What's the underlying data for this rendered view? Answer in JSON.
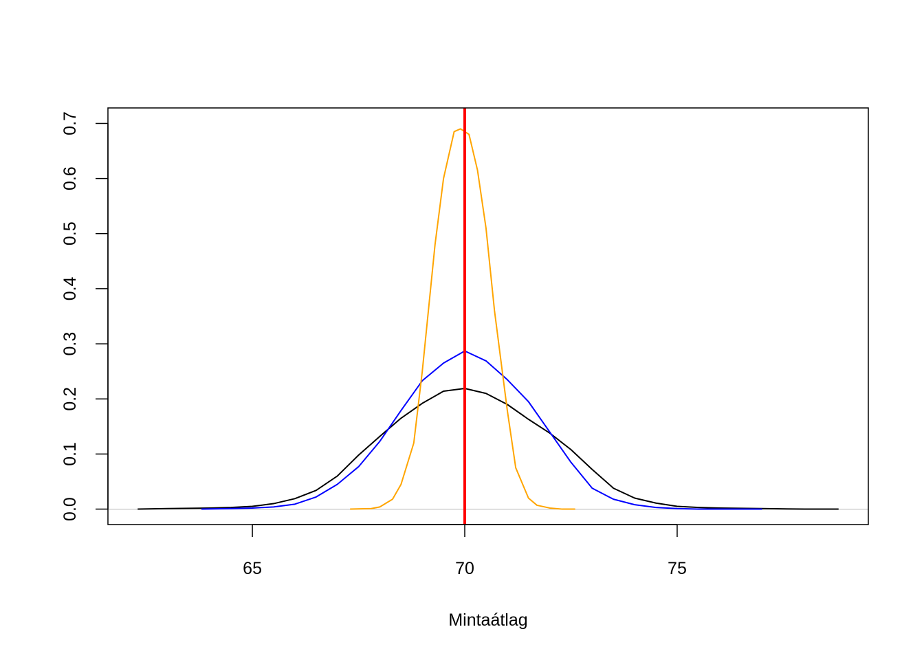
{
  "chart_data": {
    "type": "line",
    "title": "",
    "xlabel": "Mintaátlag",
    "ylabel": "",
    "xlim": [
      61.6,
      79.5
    ],
    "ylim": [
      -0.028,
      0.728
    ],
    "x_ticks": [
      65,
      70,
      75
    ],
    "x_tick_labels": [
      "65",
      "70",
      "75"
    ],
    "y_ticks": [
      0.0,
      0.1,
      0.2,
      0.3,
      0.4,
      0.5,
      0.6,
      0.7
    ],
    "y_tick_labels": [
      "0.0",
      "0.1",
      "0.2",
      "0.3",
      "0.4",
      "0.5",
      "0.6",
      "0.7"
    ],
    "grid": false,
    "legend": "none",
    "baseline": {
      "y": 0,
      "color": "#bebebe"
    },
    "vline": {
      "x": 70,
      "color": "#ff0000"
    },
    "series": [
      {
        "color": "#000000",
        "x": [
          62.3,
          63,
          64,
          64.5,
          65,
          65.5,
          66,
          66.5,
          67,
          67.5,
          68,
          68.5,
          69,
          69.5,
          70,
          70.5,
          71,
          71.5,
          72,
          72.5,
          73,
          73.5,
          74,
          74.5,
          75,
          75.5,
          76,
          77,
          78,
          78.8
        ],
        "y": [
          0.0,
          0.001,
          0.002,
          0.003,
          0.005,
          0.01,
          0.019,
          0.034,
          0.06,
          0.098,
          0.132,
          0.165,
          0.192,
          0.214,
          0.219,
          0.21,
          0.19,
          0.163,
          0.138,
          0.108,
          0.072,
          0.038,
          0.02,
          0.011,
          0.005,
          0.003,
          0.002,
          0.001,
          0.0,
          0.0
        ]
      },
      {
        "color": "#0000ff",
        "x": [
          63.8,
          64.5,
          65,
          65.5,
          66,
          66.5,
          67,
          67.5,
          68,
          68.5,
          69,
          69.5,
          70,
          70.5,
          71,
          71.5,
          72,
          72.5,
          73,
          73.5,
          74,
          74.5,
          75,
          75.5,
          76.2,
          77
        ],
        "y": [
          0.0,
          0.001,
          0.002,
          0.004,
          0.009,
          0.022,
          0.045,
          0.077,
          0.123,
          0.179,
          0.233,
          0.265,
          0.287,
          0.269,
          0.235,
          0.195,
          0.14,
          0.085,
          0.038,
          0.018,
          0.008,
          0.003,
          0.001,
          0.0,
          0.0,
          0.0
        ]
      },
      {
        "color": "#ffa500",
        "x": [
          67.3,
          67.8,
          68,
          68.3,
          68.5,
          68.8,
          69,
          69.3,
          69.5,
          69.75,
          69.9,
          70,
          70.1,
          70.3,
          70.5,
          70.7,
          71,
          71.2,
          71.5,
          71.7,
          72,
          72.3,
          72.6
        ],
        "y": [
          0.0,
          0.001,
          0.004,
          0.018,
          0.045,
          0.12,
          0.25,
          0.48,
          0.6,
          0.685,
          0.69,
          0.685,
          0.68,
          0.615,
          0.51,
          0.36,
          0.18,
          0.075,
          0.02,
          0.007,
          0.002,
          0.0,
          0.0
        ]
      }
    ]
  }
}
